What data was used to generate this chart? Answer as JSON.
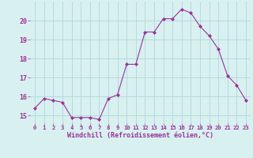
{
  "x": [
    0,
    1,
    2,
    3,
    4,
    5,
    6,
    7,
    8,
    9,
    10,
    11,
    12,
    13,
    14,
    15,
    16,
    17,
    18,
    19,
    20,
    21,
    22,
    23
  ],
  "y": [
    15.4,
    15.9,
    15.8,
    15.7,
    14.9,
    14.9,
    14.9,
    14.8,
    15.9,
    16.1,
    17.7,
    17.7,
    19.4,
    19.4,
    20.1,
    20.1,
    20.6,
    20.4,
    19.7,
    19.2,
    18.5,
    17.1,
    16.6,
    15.8
  ],
  "line_color": "#993399",
  "marker": "D",
  "marker_size": 2,
  "bg_color": "#d8f0f0",
  "grid_color": "#b0d8d8",
  "xlabel": "Windchill (Refroidissement éolien,°C)",
  "xlabel_color": "#993399",
  "tick_color": "#993399",
  "ylim": [
    14.6,
    21.0
  ],
  "xlim": [
    -0.5,
    23.5
  ],
  "yticks": [
    15,
    16,
    17,
    18,
    19,
    20
  ],
  "xticks": [
    0,
    1,
    2,
    3,
    4,
    5,
    6,
    7,
    8,
    9,
    10,
    11,
    12,
    13,
    14,
    15,
    16,
    17,
    18,
    19,
    20,
    21,
    22,
    23
  ],
  "xlabel_fontsize": 6.0,
  "xtick_fontsize": 5.2,
  "ytick_fontsize": 6.0
}
